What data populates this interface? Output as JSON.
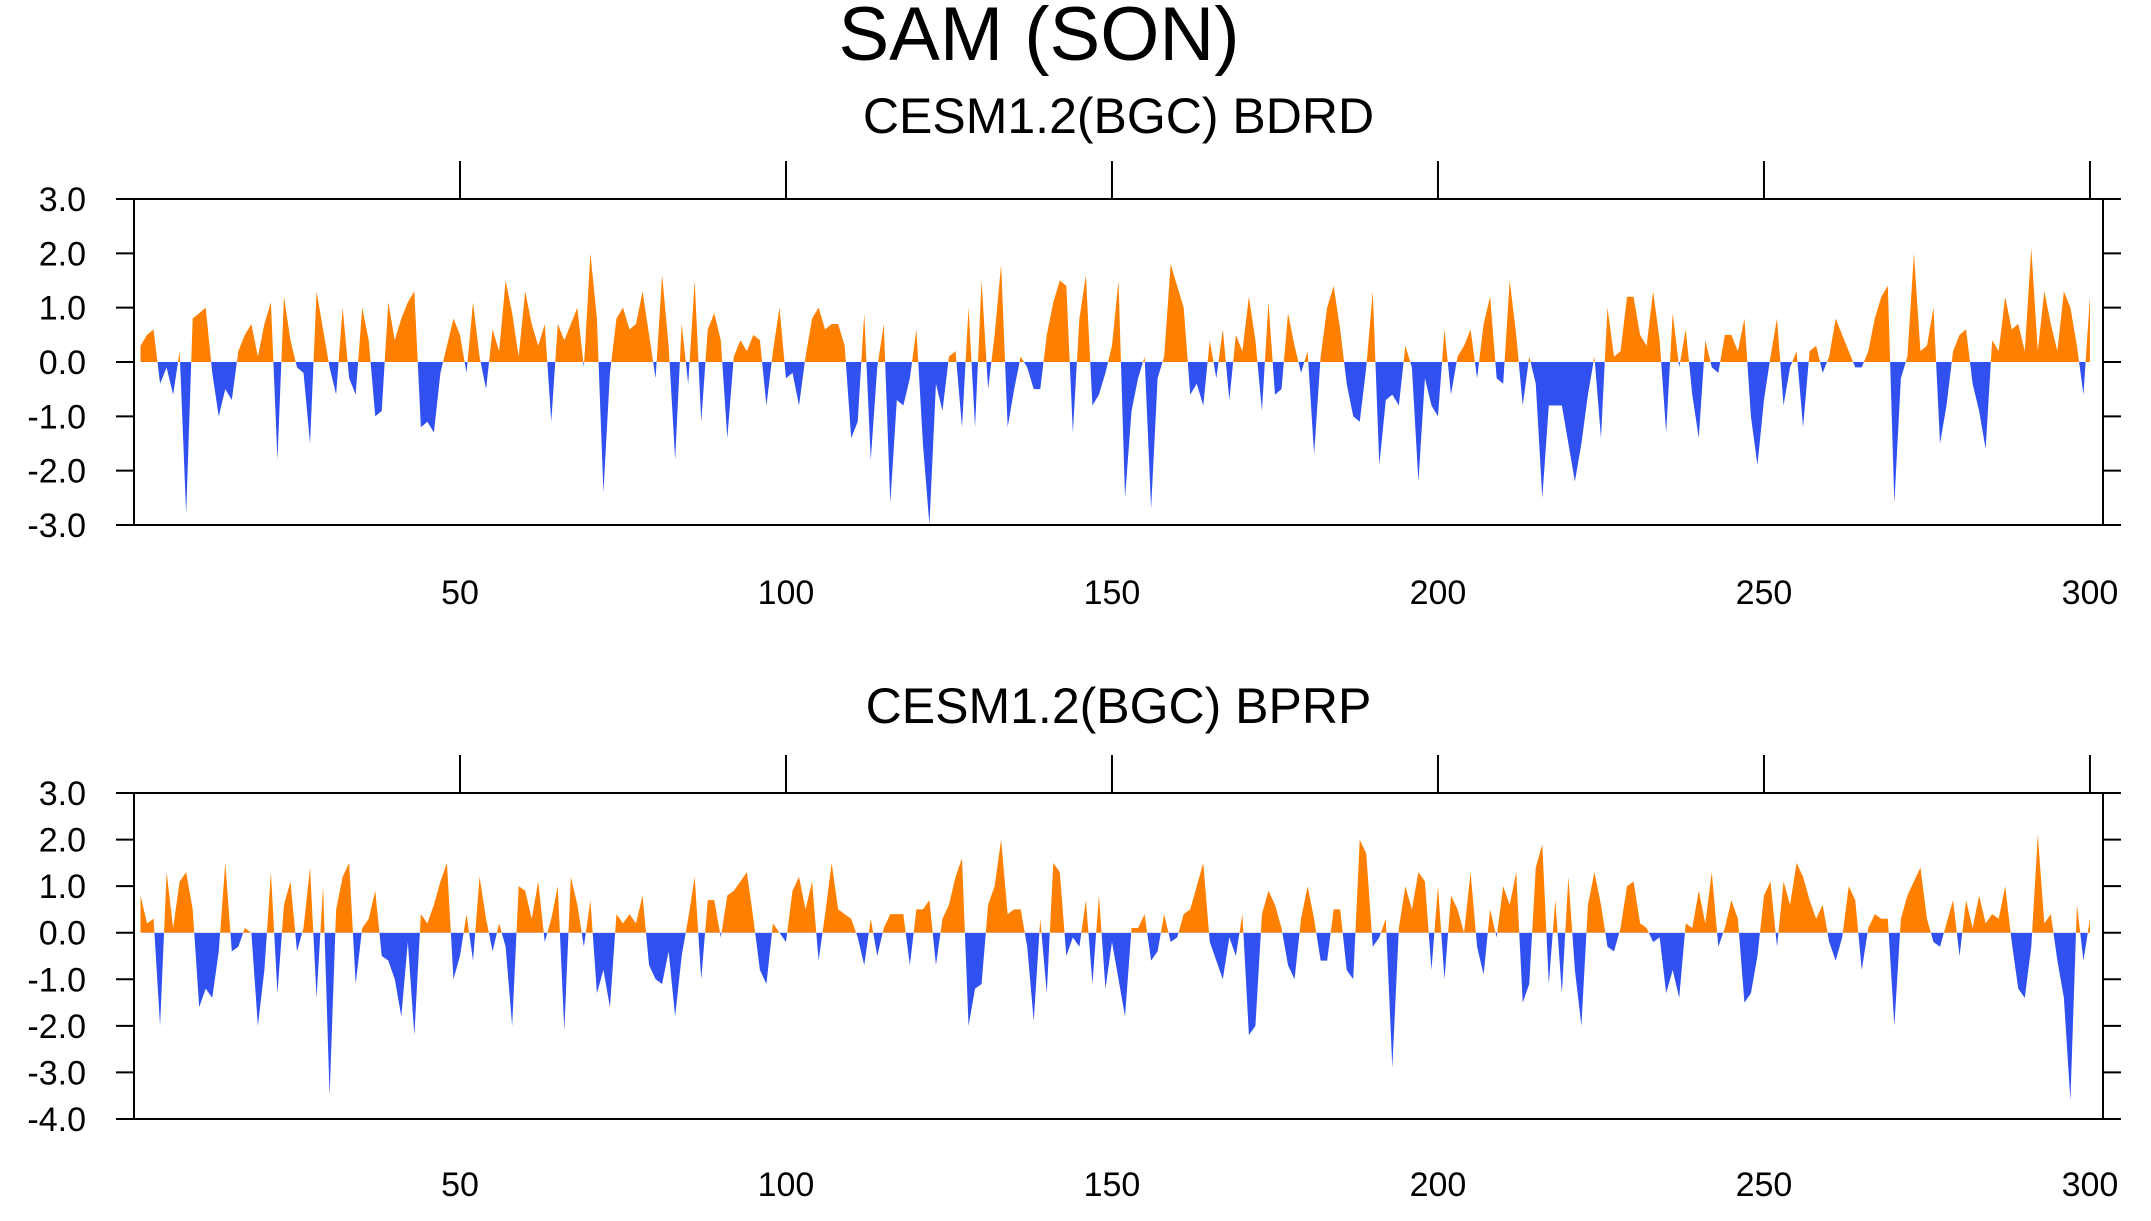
{
  "title": "SAM (SON)",
  "chart_data": [
    {
      "type": "area",
      "title": "CESM1.2(BGC) BDRD",
      "x": [
        1,
        2,
        3,
        4,
        5,
        6,
        7,
        8,
        9,
        10,
        11,
        12,
        13,
        14,
        15,
        16,
        17,
        18,
        19,
        20,
        21,
        22,
        23,
        24,
        25,
        26,
        27,
        28,
        29,
        30,
        31,
        32,
        33,
        34,
        35,
        36,
        37,
        38,
        39,
        40,
        41,
        42,
        43,
        44,
        45,
        46,
        47,
        48,
        49,
        50,
        51,
        52,
        53,
        54,
        55,
        56,
        57,
        58,
        59,
        60,
        61,
        62,
        63,
        64,
        65,
        66,
        67,
        68,
        69,
        70,
        71,
        72,
        73,
        74,
        75,
        76,
        77,
        78,
        79,
        80,
        81,
        82,
        83,
        84,
        85,
        86,
        87,
        88,
        89,
        90,
        91,
        92,
        93,
        94,
        95,
        96,
        97,
        98,
        99,
        100,
        101,
        102,
        103,
        104,
        105,
        106,
        107,
        108,
        109,
        110,
        111,
        112,
        113,
        114,
        115,
        116,
        117,
        118,
        119,
        120,
        121,
        122,
        123,
        124,
        125,
        126,
        127,
        128,
        129,
        130,
        131,
        132,
        133,
        134,
        135,
        136,
        137,
        138,
        139,
        140,
        141,
        142,
        143,
        144,
        145,
        146,
        147,
        148,
        149,
        150,
        151,
        152,
        153,
        154,
        155,
        156,
        157,
        158,
        159,
        160,
        161,
        162,
        163,
        164,
        165,
        166,
        167,
        168,
        169,
        170,
        171,
        172,
        173,
        174,
        175,
        176,
        177,
        178,
        179,
        180,
        181,
        182,
        183,
        184,
        185,
        186,
        187,
        188,
        189,
        190,
        191,
        192,
        193,
        194,
        195,
        196,
        197,
        198,
        199,
        200,
        201,
        202,
        203,
        204,
        205,
        206,
        207,
        208,
        209,
        210,
        211,
        212,
        213,
        214,
        215,
        216,
        217,
        218,
        219,
        220,
        221,
        222,
        223,
        224,
        225,
        226,
        227,
        228,
        229,
        230,
        231,
        232,
        233,
        234,
        235,
        236,
        237,
        238,
        239,
        240,
        241,
        242,
        243,
        244,
        245,
        246,
        247,
        248,
        249,
        250,
        251,
        252,
        253,
        254,
        255,
        256,
        257,
        258,
        259,
        260,
        261,
        262,
        263,
        264,
        265,
        266,
        267,
        268,
        269,
        270,
        271,
        272,
        273,
        274,
        275,
        276,
        277,
        278,
        279,
        280,
        281,
        282,
        283,
        284,
        285,
        286,
        287,
        288,
        289,
        290,
        291,
        292,
        293,
        294,
        295,
        296,
        297,
        298,
        299,
        300
      ],
      "values": [
        0.3,
        0.5,
        0.6,
        -0.4,
        -0.1,
        -0.6,
        0.2,
        -2.8,
        0.8,
        0.9,
        1.0,
        -0.2,
        -1.0,
        -0.5,
        -0.7,
        0.2,
        0.5,
        0.7,
        0.1,
        0.7,
        1.1,
        -1.8,
        1.2,
        0.4,
        -0.1,
        -0.2,
        -1.5,
        1.3,
        0.6,
        -0.1,
        -0.6,
        1.0,
        -0.3,
        -0.6,
        1.0,
        0.4,
        -1.0,
        -0.9,
        1.1,
        0.4,
        0.8,
        1.1,
        1.3,
        -1.2,
        -1.1,
        -1.3,
        -0.2,
        0.3,
        0.8,
        0.5,
        -0.2,
        1.1,
        0.1,
        -0.5,
        0.6,
        0.2,
        1.5,
        0.9,
        0.1,
        1.3,
        0.7,
        0.3,
        0.7,
        -1.1,
        0.7,
        0.4,
        0.7,
        1.0,
        -0.1,
        2.0,
        0.8,
        -2.4,
        -0.2,
        0.8,
        1.0,
        0.6,
        0.7,
        1.3,
        0.5,
        -0.3,
        1.6,
        0.3,
        -1.8,
        0.7,
        -0.4,
        1.5,
        -1.1,
        0.6,
        0.9,
        0.4,
        -1.4,
        0.1,
        0.4,
        0.2,
        0.5,
        0.4,
        -0.8,
        0.2,
        1.0,
        -0.3,
        -0.2,
        -0.8,
        0.1,
        0.8,
        1.0,
        0.6,
        0.7,
        0.7,
        0.3,
        -1.4,
        -1.1,
        0.9,
        -1.8,
        -0.1,
        0.7,
        -2.6,
        -0.7,
        -0.8,
        -0.3,
        0.6,
        -1.5,
        -3.0,
        -0.4,
        -0.9,
        0.1,
        0.2,
        -1.2,
        1.0,
        -1.2,
        1.5,
        -0.5,
        0.5,
        1.8,
        -1.2,
        -0.5,
        0.1,
        -0.1,
        -0.5,
        -0.5,
        0.5,
        1.1,
        1.5,
        1.4,
        -1.3,
        0.8,
        1.6,
        -0.8,
        -0.6,
        -0.2,
        0.3,
        1.5,
        -2.5,
        -0.9,
        -0.3,
        0.1,
        -2.7,
        -0.3,
        0.1,
        1.8,
        1.4,
        1.0,
        -0.6,
        -0.4,
        -0.8,
        0.4,
        -0.3,
        0.6,
        -0.7,
        0.5,
        0.2,
        1.2,
        0.4,
        -0.9,
        1.1,
        -0.6,
        -0.5,
        0.9,
        0.3,
        -0.2,
        0.2,
        -1.7,
        0.1,
        1.0,
        1.4,
        0.6,
        -0.4,
        -1.0,
        -1.1,
        -0.1,
        1.3,
        -1.9,
        -0.7,
        -0.6,
        -0.8,
        0.3,
        -0.1,
        -2.2,
        -0.3,
        -0.8,
        -1.0,
        0.6,
        -0.6,
        0.1,
        0.3,
        0.6,
        -0.3,
        0.7,
        1.2,
        -0.3,
        -0.4,
        1.5,
        0.5,
        -0.8,
        0.1,
        -0.4,
        -2.5,
        -0.8,
        -0.8,
        -0.8,
        -1.5,
        -2.2,
        -1.5,
        -0.6,
        0.1,
        -1.4,
        1.0,
        0.1,
        0.2,
        1.2,
        1.2,
        0.5,
        0.3,
        1.3,
        0.4,
        -1.3,
        0.9,
        -0.1,
        0.6,
        -0.6,
        -1.4,
        0.4,
        -0.1,
        -0.2,
        0.5,
        0.5,
        0.2,
        0.8,
        -1.0,
        -1.9,
        -0.7,
        0.1,
        0.8,
        -0.8,
        -0.1,
        0.2,
        -1.2,
        0.2,
        0.3,
        -0.2,
        0.1,
        0.8,
        0.5,
        0.2,
        -0.1,
        -0.1,
        0.2,
        0.8,
        1.2,
        1.4,
        -2.6,
        -0.3,
        0.1,
        2.0,
        0.2,
        0.3,
        1.0,
        -1.5,
        -0.8,
        0.2,
        0.5,
        0.6,
        -0.4,
        -0.9,
        -1.6,
        0.4,
        0.2,
        1.2,
        0.6,
        0.7,
        0.2,
        2.1,
        0.2,
        1.3,
        0.7,
        0.2,
        1.3,
        1.0,
        0.3,
        -0.6,
        1.2
      ],
      "color_above": "#ff8000",
      "color_below": "#3050f0",
      "xlim": [
        0,
        302
      ],
      "xticks": [
        50,
        100,
        150,
        200,
        250,
        300
      ],
      "ylim": [
        -3,
        3
      ],
      "yticks": [
        {
          "value": -3,
          "label": "-3.0"
        },
        {
          "value": -2,
          "label": "-2.0"
        },
        {
          "value": -1,
          "label": "-1.0"
        },
        {
          "value": 0,
          "label": "0.0"
        },
        {
          "value": 1,
          "label": "1.0"
        },
        {
          "value": 2,
          "label": "2.0"
        },
        {
          "value": 3,
          "label": "3.0"
        }
      ]
    },
    {
      "type": "area",
      "title": "CESM1.2(BGC) BPRP",
      "x": [
        1,
        2,
        3,
        4,
        5,
        6,
        7,
        8,
        9,
        10,
        11,
        12,
        13,
        14,
        15,
        16,
        17,
        18,
        19,
        20,
        21,
        22,
        23,
        24,
        25,
        26,
        27,
        28,
        29,
        30,
        31,
        32,
        33,
        34,
        35,
        36,
        37,
        38,
        39,
        40,
        41,
        42,
        43,
        44,
        45,
        46,
        47,
        48,
        49,
        50,
        51,
        52,
        53,
        54,
        55,
        56,
        57,
        58,
        59,
        60,
        61,
        62,
        63,
        64,
        65,
        66,
        67,
        68,
        69,
        70,
        71,
        72,
        73,
        74,
        75,
        76,
        77,
        78,
        79,
        80,
        81,
        82,
        83,
        84,
        85,
        86,
        87,
        88,
        89,
        90,
        91,
        92,
        93,
        94,
        95,
        96,
        97,
        98,
        99,
        100,
        101,
        102,
        103,
        104,
        105,
        106,
        107,
        108,
        109,
        110,
        111,
        112,
        113,
        114,
        115,
        116,
        117,
        118,
        119,
        120,
        121,
        122,
        123,
        124,
        125,
        126,
        127,
        128,
        129,
        130,
        131,
        132,
        133,
        134,
        135,
        136,
        137,
        138,
        139,
        140,
        141,
        142,
        143,
        144,
        145,
        146,
        147,
        148,
        149,
        150,
        151,
        152,
        153,
        154,
        155,
        156,
        157,
        158,
        159,
        160,
        161,
        162,
        163,
        164,
        165,
        166,
        167,
        168,
        169,
        170,
        171,
        172,
        173,
        174,
        175,
        176,
        177,
        178,
        179,
        180,
        181,
        182,
        183,
        184,
        185,
        186,
        187,
        188,
        189,
        190,
        191,
        192,
        193,
        194,
        195,
        196,
        197,
        198,
        199,
        200,
        201,
        202,
        203,
        204,
        205,
        206,
        207,
        208,
        209,
        210,
        211,
        212,
        213,
        214,
        215,
        216,
        217,
        218,
        219,
        220,
        221,
        222,
        223,
        224,
        225,
        226,
        227,
        228,
        229,
        230,
        231,
        232,
        233,
        234,
        235,
        236,
        237,
        238,
        239,
        240,
        241,
        242,
        243,
        244,
        245,
        246,
        247,
        248,
        249,
        250,
        251,
        252,
        253,
        254,
        255,
        256,
        257,
        258,
        259,
        260,
        261,
        262,
        263,
        264,
        265,
        266,
        267,
        268,
        269,
        270,
        271,
        272,
        273,
        274,
        275,
        276,
        277,
        278,
        279,
        280,
        281,
        282,
        283,
        284,
        285,
        286,
        287,
        288,
        289,
        290,
        291,
        292,
        293,
        294,
        295,
        296,
        297,
        298,
        299,
        300
      ],
      "values": [
        0.8,
        0.2,
        0.3,
        -2.0,
        1.3,
        0.1,
        1.1,
        1.3,
        0.5,
        -1.6,
        -1.2,
        -1.4,
        -0.4,
        1.5,
        -0.4,
        -0.3,
        0.1,
        0.0,
        -2.0,
        -0.8,
        1.3,
        -1.3,
        0.6,
        1.1,
        -0.4,
        0.1,
        1.4,
        -1.4,
        1.0,
        -3.5,
        0.5,
        1.2,
        1.5,
        -1.1,
        0.1,
        0.3,
        0.9,
        -0.5,
        -0.6,
        -1.0,
        -1.8,
        -0.2,
        -2.2,
        0.4,
        0.2,
        0.6,
        1.1,
        1.5,
        -1.0,
        -0.5,
        0.4,
        -0.6,
        1.2,
        0.3,
        -0.4,
        0.2,
        -0.3,
        -2.0,
        1.0,
        0.9,
        0.3,
        1.1,
        -0.2,
        0.3,
        1.0,
        -2.1,
        1.2,
        0.6,
        -0.3,
        0.7,
        -1.3,
        -0.8,
        -1.6,
        0.4,
        0.2,
        0.4,
        0.2,
        0.8,
        -0.7,
        -1.0,
        -1.1,
        -0.4,
        -1.8,
        -0.5,
        0.3,
        1.2,
        -1.0,
        0.7,
        0.7,
        -0.1,
        0.8,
        0.9,
        1.1,
        1.3,
        0.3,
        -0.8,
        -1.1,
        0.2,
        0.0,
        -0.2,
        0.9,
        1.2,
        0.5,
        1.1,
        -0.6,
        0.4,
        1.5,
        0.5,
        0.4,
        0.3,
        -0.1,
        -0.7,
        0.3,
        -0.5,
        0.1,
        0.4,
        0.4,
        0.4,
        -0.7,
        0.5,
        0.5,
        0.7,
        -0.7,
        0.3,
        0.6,
        1.2,
        1.6,
        -2.0,
        -1.2,
        -1.1,
        0.6,
        1.0,
        2.0,
        0.4,
        0.5,
        0.5,
        -0.3,
        -1.9,
        0.3,
        -1.3,
        1.5,
        1.3,
        -0.5,
        -0.1,
        -0.3,
        0.7,
        -1.1,
        0.8,
        -1.2,
        -0.2,
        -1.0,
        -1.8,
        0.1,
        0.1,
        0.4,
        -0.6,
        -0.4,
        0.4,
        -0.2,
        -0.1,
        0.4,
        0.5,
        1.0,
        1.5,
        -0.2,
        -0.6,
        -1.0,
        -0.1,
        -0.5,
        0.4,
        -2.2,
        -2.0,
        0.4,
        0.9,
        0.6,
        0.1,
        -0.7,
        -1.0,
        0.3,
        1.0,
        0.3,
        -0.6,
        -0.6,
        0.5,
        0.5,
        -0.8,
        -1.0,
        2.0,
        1.7,
        -0.3,
        -0.1,
        0.3,
        -2.9,
        0.1,
        1.0,
        0.5,
        1.3,
        1.1,
        -0.8,
        1.0,
        -1.0,
        0.8,
        0.5,
        0.0,
        1.3,
        -0.3,
        -0.9,
        0.5,
        -0.1,
        1.0,
        0.6,
        1.3,
        -1.5,
        -1.1,
        1.4,
        1.9,
        -1.1,
        0.7,
        -1.3,
        1.2,
        -0.8,
        -2.0,
        0.6,
        1.3,
        0.6,
        -0.3,
        -0.4,
        0.1,
        1.0,
        1.1,
        0.2,
        0.1,
        -0.2,
        -0.1,
        -1.3,
        -0.8,
        -1.4,
        0.2,
        0.1,
        0.9,
        0.2,
        1.3,
        -0.3,
        0.1,
        0.7,
        0.3,
        -1.5,
        -1.3,
        -0.5,
        0.8,
        1.1,
        -0.3,
        1.1,
        0.6,
        1.5,
        1.2,
        0.7,
        0.3,
        0.6,
        -0.2,
        -0.6,
        -0.1,
        1.0,
        0.7,
        -0.8,
        0.1,
        0.4,
        0.3,
        0.3,
        -2.0,
        0.3,
        0.8,
        1.1,
        1.4,
        0.3,
        -0.2,
        -0.3,
        0.2,
        0.7,
        -0.5,
        0.7,
        0.1,
        0.8,
        0.2,
        0.4,
        0.3,
        1.0,
        -0.2,
        -1.2,
        -1.4,
        -0.3,
        2.1,
        0.2,
        0.4,
        -0.6,
        -1.4,
        -3.6,
        0.6,
        -0.6,
        0.3
      ],
      "color_above": "#ff8000",
      "color_below": "#3050f0",
      "xlim": [
        0,
        302
      ],
      "xticks": [
        50,
        100,
        150,
        200,
        250,
        300
      ],
      "ylim": [
        -4,
        3
      ],
      "yticks": [
        {
          "value": -4,
          "label": "-4.0"
        },
        {
          "value": -3,
          "label": "-3.0"
        },
        {
          "value": -2,
          "label": "-2.0"
        },
        {
          "value": -1,
          "label": "-1.0"
        },
        {
          "value": 0,
          "label": "0.0"
        },
        {
          "value": 1,
          "label": "1.0"
        },
        {
          "value": 2,
          "label": "2.0"
        },
        {
          "value": 3,
          "label": "3.0"
        }
      ]
    }
  ]
}
